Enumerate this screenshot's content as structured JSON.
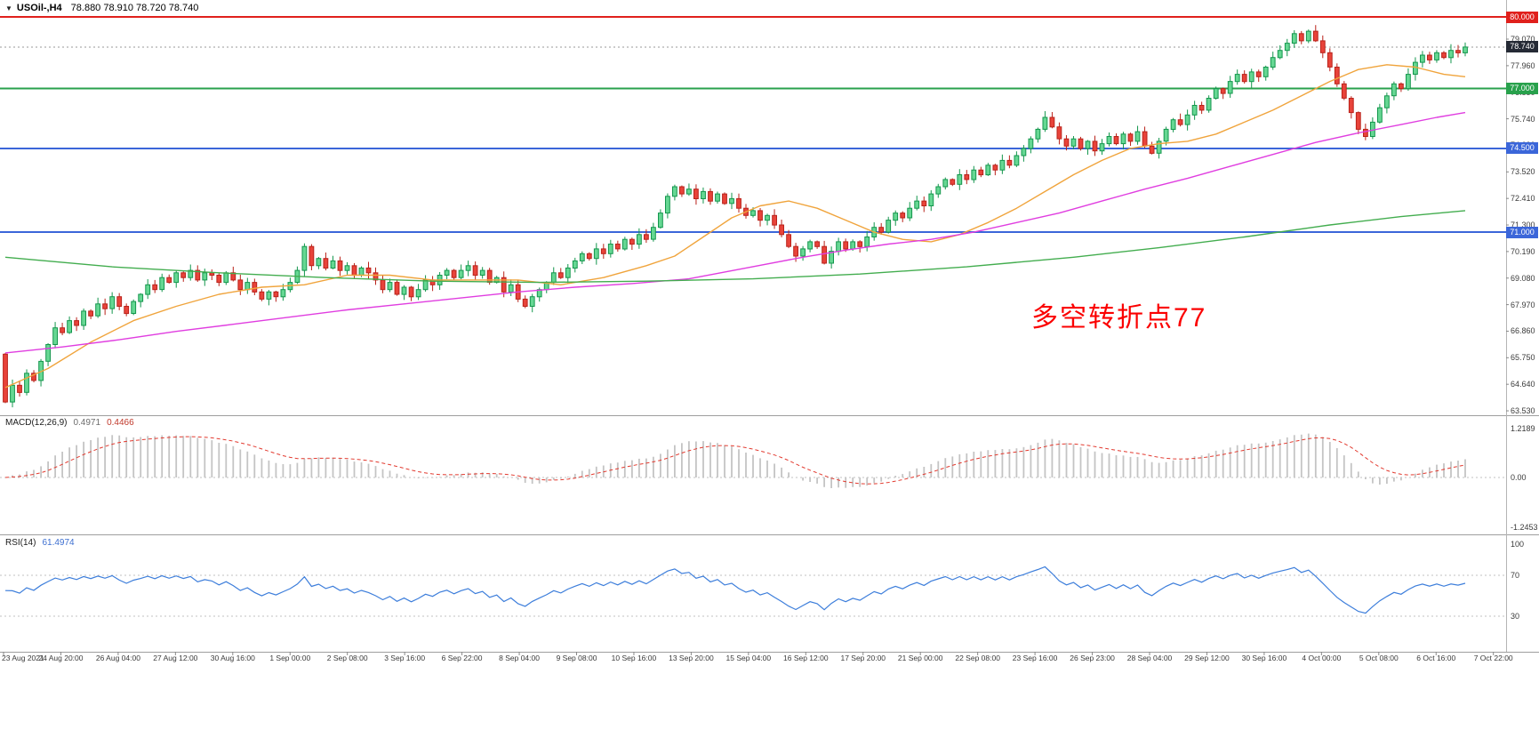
{
  "window": {
    "collapse_icon": "▼",
    "caption_symbol": "USOil-,H4",
    "caption_ohlc": "78.880 78.910 78.720 78.740"
  },
  "annotation": {
    "text": "多空转折点77",
    "color": "#fb0000"
  },
  "colors": {
    "bull_fill": "#66d793",
    "bull_stroke": "#13964c",
    "bear_fill": "#e8433a",
    "bear_stroke": "#b9221a",
    "ma_fast": "#f0a43c",
    "ma_mid": "#e03ee0",
    "ma_slow": "#43ad4f",
    "level_red": "#e0201c",
    "level_green": "#28a14c",
    "level_blue": "#3b66d9",
    "macd_hist": "#c4c4c4",
    "macd_signal": "#e23a2f",
    "rsi_line": "#3d7edb",
    "current_badge_bg": "#252a35"
  },
  "chart_data": {
    "type": "candlestick",
    "symbol": "USOil-",
    "timeframe": "H4",
    "ohlc_display": {
      "open": "78.880",
      "high": "78.910",
      "low": "78.720",
      "close": "78.740"
    },
    "price_axis": {
      "tick_values": [
        79.07,
        77.96,
        76.85,
        75.74,
        74.63,
        73.52,
        72.41,
        71.3,
        70.19,
        69.08,
        67.97,
        66.86,
        65.75,
        64.64,
        63.53
      ],
      "tick_labels": [
        "79.070",
        "77.960",
        "76.850",
        "75.740",
        "74.630",
        "73.520",
        "72.410",
        "71.300",
        "70.190",
        "69.080",
        "67.970",
        "66.860",
        "65.750",
        "64.640",
        "63.530"
      ],
      "current_price": 78.74,
      "current_label": "78.740"
    },
    "levels": [
      {
        "value": 80.0,
        "label": "80.000",
        "color_key": "level_red"
      },
      {
        "value": 77.0,
        "label": "77.000",
        "color_key": "level_green"
      },
      {
        "value": 74.5,
        "label": "74.500",
        "color_key": "level_blue"
      },
      {
        "value": 71.0,
        "label": "71.000",
        "color_key": "level_blue"
      }
    ],
    "candles": {
      "first_open": 65.9,
      "closes": [
        63.9,
        64.6,
        64.3,
        65.1,
        64.8,
        65.6,
        66.3,
        67.0,
        66.8,
        67.3,
        67.1,
        67.7,
        67.5,
        68.0,
        67.8,
        68.3,
        67.9,
        67.6,
        68.1,
        68.4,
        68.8,
        68.6,
        69.1,
        68.9,
        69.3,
        69.1,
        69.4,
        69.0,
        69.3,
        69.2,
        68.9,
        69.3,
        69.0,
        68.6,
        68.9,
        68.5,
        68.2,
        68.5,
        68.3,
        68.6,
        68.9,
        69.4,
        70.4,
        69.6,
        69.9,
        69.5,
        69.8,
        69.4,
        69.6,
        69.2,
        69.5,
        69.3,
        69.0,
        68.6,
        68.9,
        68.4,
        68.7,
        68.3,
        68.6,
        69.0,
        68.8,
        69.2,
        69.4,
        69.1,
        69.4,
        69.6,
        69.2,
        69.4,
        68.9,
        69.1,
        68.5,
        68.8,
        68.2,
        67.9,
        68.3,
        68.6,
        68.9,
        69.3,
        69.1,
        69.5,
        69.8,
        70.1,
        69.9,
        70.3,
        70.1,
        70.5,
        70.3,
        70.7,
        70.5,
        70.9,
        70.7,
        71.2,
        71.8,
        72.5,
        72.9,
        72.6,
        72.8,
        72.4,
        72.7,
        72.3,
        72.6,
        72.2,
        72.4,
        72.0,
        71.7,
        71.9,
        71.5,
        71.7,
        71.3,
        70.9,
        70.4,
        70.0,
        70.3,
        70.6,
        70.4,
        69.7,
        70.2,
        70.6,
        70.3,
        70.6,
        70.4,
        70.8,
        71.2,
        71.0,
        71.5,
        71.8,
        71.6,
        72.0,
        72.3,
        72.1,
        72.6,
        72.9,
        73.2,
        73.0,
        73.4,
        73.2,
        73.6,
        73.4,
        73.8,
        73.6,
        74.0,
        73.8,
        74.2,
        74.5,
        74.9,
        75.3,
        75.8,
        75.4,
        74.9,
        74.6,
        74.9,
        74.5,
        74.8,
        74.4,
        74.7,
        75.0,
        74.7,
        75.1,
        74.8,
        75.2,
        74.6,
        74.3,
        74.8,
        75.3,
        75.7,
        75.5,
        75.9,
        76.3,
        76.1,
        76.6,
        77.0,
        76.8,
        77.3,
        77.6,
        77.3,
        77.7,
        77.5,
        77.9,
        78.3,
        78.6,
        78.9,
        79.3,
        79.0,
        79.4,
        79.0,
        78.5,
        77.9,
        77.2,
        76.6,
        76.0,
        75.3,
        75.0,
        75.6,
        76.2,
        76.7,
        77.2,
        77.0,
        77.6,
        78.1,
        78.4,
        78.2,
        78.5,
        78.3,
        78.6,
        78.5,
        78.74
      ]
    },
    "moving_averages": [
      {
        "name": "fast-orange",
        "color_key": "ma_fast",
        "points": [
          [
            0,
            64.5
          ],
          [
            6,
            65.3
          ],
          [
            12,
            66.4
          ],
          [
            18,
            67.3
          ],
          [
            24,
            67.9
          ],
          [
            30,
            68.4
          ],
          [
            36,
            68.7
          ],
          [
            42,
            68.8
          ],
          [
            48,
            69.2
          ],
          [
            54,
            69.2
          ],
          [
            60,
            69.0
          ],
          [
            66,
            69.0
          ],
          [
            72,
            69.0
          ],
          [
            78,
            68.8
          ],
          [
            84,
            69.1
          ],
          [
            90,
            69.6
          ],
          [
            94,
            70.0
          ],
          [
            98,
            70.8
          ],
          [
            102,
            71.6
          ],
          [
            106,
            72.1
          ],
          [
            110,
            72.3
          ],
          [
            114,
            72.0
          ],
          [
            118,
            71.5
          ],
          [
            122,
            71.0
          ],
          [
            126,
            70.7
          ],
          [
            130,
            70.6
          ],
          [
            134,
            70.9
          ],
          [
            138,
            71.4
          ],
          [
            142,
            72.0
          ],
          [
            146,
            72.7
          ],
          [
            150,
            73.4
          ],
          [
            154,
            74.0
          ],
          [
            158,
            74.5
          ],
          [
            162,
            74.7
          ],
          [
            166,
            74.8
          ],
          [
            170,
            75.1
          ],
          [
            174,
            75.6
          ],
          [
            178,
            76.1
          ],
          [
            182,
            76.7
          ],
          [
            186,
            77.3
          ],
          [
            190,
            77.8
          ],
          [
            194,
            78.0
          ],
          [
            198,
            77.9
          ],
          [
            202,
            77.6
          ],
          [
            205,
            77.5
          ]
        ]
      },
      {
        "name": "mid-magenta",
        "color_key": "ma_mid",
        "points": [
          [
            0,
            65.95
          ],
          [
            8,
            66.2
          ],
          [
            16,
            66.5
          ],
          [
            24,
            66.85
          ],
          [
            32,
            67.15
          ],
          [
            40,
            67.45
          ],
          [
            48,
            67.75
          ],
          [
            56,
            68.0
          ],
          [
            64,
            68.25
          ],
          [
            72,
            68.5
          ],
          [
            80,
            68.7
          ],
          [
            88,
            68.85
          ],
          [
            96,
            69.05
          ],
          [
            104,
            69.5
          ],
          [
            112,
            69.95
          ],
          [
            118,
            70.25
          ],
          [
            124,
            70.5
          ],
          [
            130,
            70.7
          ],
          [
            136,
            71.0
          ],
          [
            142,
            71.4
          ],
          [
            148,
            71.8
          ],
          [
            154,
            72.3
          ],
          [
            160,
            72.8
          ],
          [
            166,
            73.25
          ],
          [
            172,
            73.75
          ],
          [
            178,
            74.25
          ],
          [
            184,
            74.75
          ],
          [
            190,
            75.15
          ],
          [
            196,
            75.5
          ],
          [
            201,
            75.8
          ],
          [
            205,
            76.0
          ]
        ]
      },
      {
        "name": "slow-green",
        "color_key": "ma_slow",
        "points": [
          [
            0,
            69.95
          ],
          [
            15,
            69.55
          ],
          [
            30,
            69.3
          ],
          [
            45,
            69.1
          ],
          [
            60,
            68.95
          ],
          [
            75,
            68.9
          ],
          [
            90,
            68.95
          ],
          [
            105,
            69.05
          ],
          [
            120,
            69.25
          ],
          [
            135,
            69.55
          ],
          [
            150,
            69.95
          ],
          [
            162,
            70.35
          ],
          [
            174,
            70.8
          ],
          [
            186,
            71.3
          ],
          [
            196,
            71.65
          ],
          [
            205,
            71.9
          ]
        ]
      }
    ],
    "macd": {
      "title": "MACD(12,26,9)",
      "value_main": "0.4971",
      "value_signal": "0.4466",
      "fast": 12,
      "slow": 26,
      "signal": 9,
      "axis_labels": [
        {
          "value": 1.2189,
          "label": "1.2189"
        },
        {
          "value": 0,
          "label": "0.00"
        },
        {
          "value": -1.2453,
          "label": "-1.2453"
        }
      ]
    },
    "rsi": {
      "title": "RSI(14)",
      "value": "61.4974",
      "period": 14,
      "levels": [
        {
          "value": 100,
          "label": "100",
          "line": false
        },
        {
          "value": 70,
          "label": "70",
          "line": true
        },
        {
          "value": 30,
          "label": "30",
          "line": true
        }
      ]
    },
    "time_axis": {
      "labels": [
        "23 Aug 2021",
        "24 Aug 20:00",
        "26 Aug 04:00",
        "27 Aug 12:00",
        "30 Aug 16:00",
        "1 Sep 00:00",
        "2 Sep 08:00",
        "3 Sep 16:00",
        "6 Sep 22:00",
        "8 Sep 04:00",
        "9 Sep 08:00",
        "10 Sep 16:00",
        "13 Sep 20:00",
        "15 Sep 04:00",
        "16 Sep 12:00",
        "17 Sep 20:00",
        "21 Sep 00:00",
        "22 Sep 08:00",
        "23 Sep 16:00",
        "26 Sep 23:00",
        "28 Sep 04:00",
        "29 Sep 12:00",
        "30 Sep 16:00",
        "4 Oct 00:00",
        "5 Oct 08:00",
        "6 Oct 16:00",
        "7 Oct 22:00"
      ]
    }
  }
}
